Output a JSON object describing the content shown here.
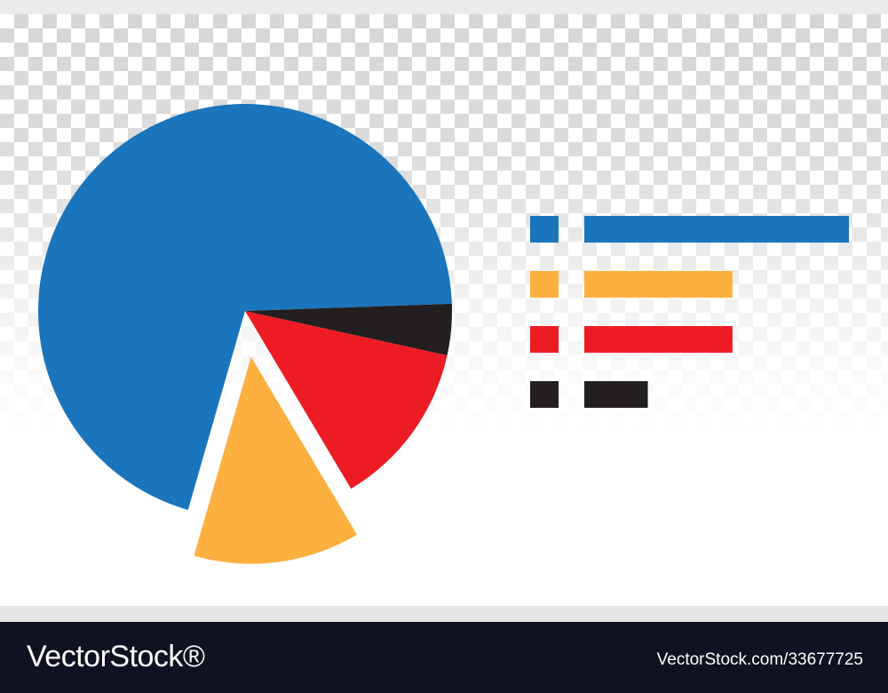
{
  "chart_data": {
    "type": "pie",
    "title": "",
    "slices": [
      {
        "color": "#1b75bc",
        "value": 70,
        "exploded": false
      },
      {
        "color": "#fbb040",
        "value": 13,
        "exploded": true
      },
      {
        "color": "#ed1c24",
        "value": 13,
        "exploded": false
      },
      {
        "color": "#231f20",
        "value": 4,
        "exploded": false
      }
    ],
    "legend": {
      "placement": "right",
      "entries": [
        {
          "color": "#1b75bc",
          "length": 100
        },
        {
          "color": "#fbb040",
          "length": 56
        },
        {
          "color": "#ed1c24",
          "length": 56
        },
        {
          "color": "#231f20",
          "length": 24
        }
      ]
    },
    "background": "transparency checkerboard"
  },
  "footer": {
    "brand": "VectorStock®",
    "image_id": "VectorStock.com/33677725"
  }
}
